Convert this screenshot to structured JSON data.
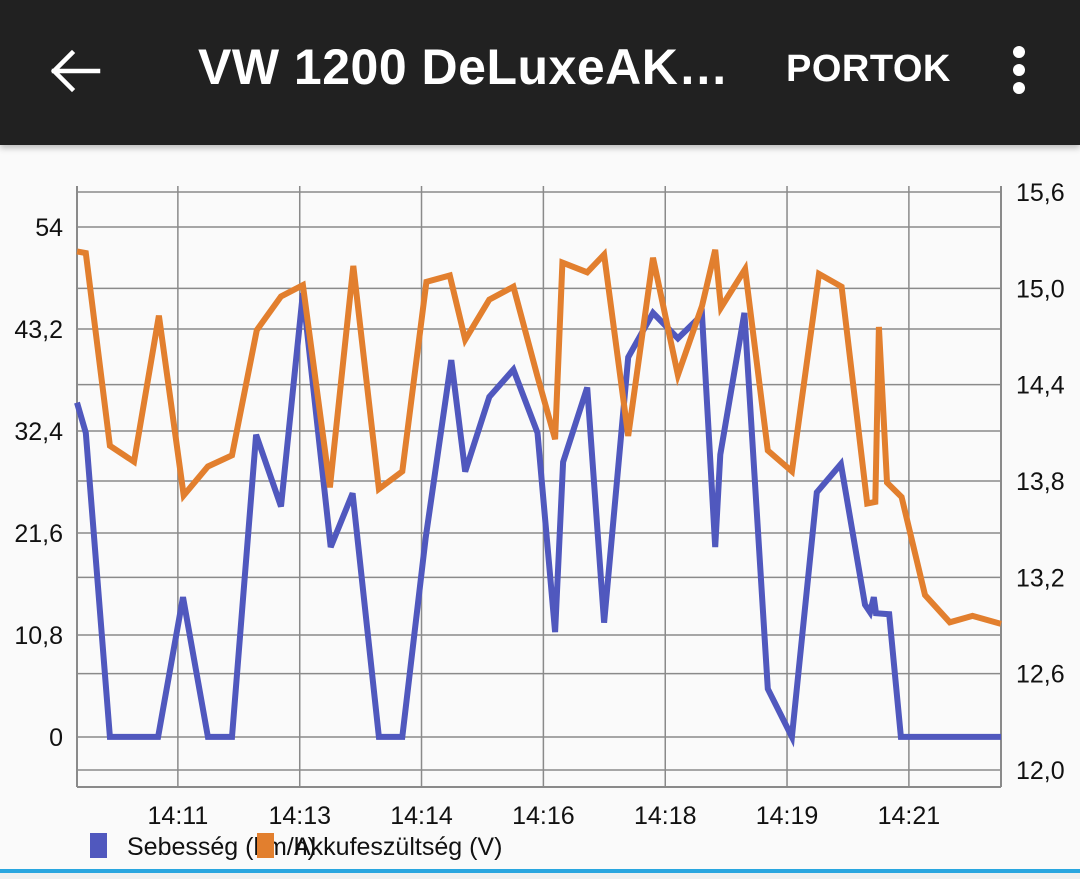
{
  "appbar": {
    "title": "VW 1200 DeLuxeAK…",
    "action_label": "PORTOK",
    "back_icon": "arrow-left-icon",
    "menu_icon": "more-vert-icon"
  },
  "chart_data": {
    "type": "line",
    "title": "",
    "xlabel": "",
    "x_unit": "minutes after 14:00",
    "xlim": [
      9.62,
      22.26
    ],
    "x_ticks": [
      11,
      12.667,
      14.333,
      16,
      17.667,
      19.333,
      21
    ],
    "x_tick_labels": [
      "14:11",
      "14:13",
      "14:14",
      "14:16",
      "14:18",
      "14:19",
      "14:21"
    ],
    "y_left": {
      "label": "Sebesség (km/h)",
      "lim": [
        -5.3,
        57.7
      ],
      "ticks": [
        0,
        10.8,
        21.6,
        32.4,
        43.2,
        54
      ],
      "tick_labels": [
        "0",
        "10,8",
        "21,6",
        "32,4",
        "43,2",
        "54"
      ]
    },
    "y_right": {
      "label": "Akkufeszültség (V)",
      "lim": [
        11.894,
        15.6
      ],
      "ticks": [
        12.0,
        12.6,
        13.2,
        13.8,
        14.4,
        15.0,
        15.6
      ],
      "tick_labels": [
        "12,0",
        "12,6",
        "13,2",
        "13,8",
        "14,4",
        "15,0",
        "15,6"
      ]
    },
    "grid": true,
    "legend_position": "bottom-left",
    "series": [
      {
        "name": "Sebesség (km/h)",
        "axis": "left",
        "color": "#5058be",
        "x": [
          9.62,
          9.74,
          10.07,
          10.73,
          11.07,
          11.41,
          11.74,
          12.07,
          12.41,
          12.71,
          13.09,
          13.39,
          13.75,
          14.07,
          14.39,
          14.74,
          14.93,
          15.26,
          15.59,
          15.92,
          16.16,
          16.27,
          16.6,
          16.83,
          17.16,
          17.5,
          17.84,
          18.17,
          18.35,
          18.42,
          18.75,
          19.07,
          19.4,
          19.74,
          20.07,
          20.4,
          20.47,
          20.52,
          20.55,
          20.73,
          20.89,
          22.26
        ],
        "y": [
          35.4,
          32.2,
          0,
          0,
          14.8,
          0,
          0,
          32.0,
          24.4,
          47.0,
          20.1,
          25.8,
          0,
          0,
          21.1,
          39.9,
          28.1,
          36.0,
          38.9,
          32.2,
          11.1,
          29.1,
          37.0,
          12.1,
          40.2,
          44.9,
          42.2,
          44.7,
          20.1,
          29.9,
          44.9,
          5.1,
          0,
          25.9,
          28.9,
          14.0,
          13.2,
          14.8,
          13.1,
          13.0,
          0,
          0
        ]
      },
      {
        "name": "Akkufeszültség (V)",
        "axis": "right",
        "color": "#e27f2e",
        "x": [
          9.62,
          9.74,
          10.07,
          10.4,
          10.74,
          11.08,
          11.41,
          11.74,
          12.08,
          12.41,
          12.71,
          13.08,
          13.4,
          13.75,
          14.07,
          14.4,
          14.72,
          14.93,
          15.26,
          15.59,
          15.92,
          16.16,
          16.26,
          16.6,
          16.83,
          17.16,
          17.5,
          17.84,
          18.17,
          18.35,
          18.43,
          18.76,
          19.07,
          19.4,
          19.77,
          20.08,
          20.43,
          20.54,
          20.59,
          20.7,
          20.9,
          21.22,
          21.56,
          21.87,
          22.26
        ],
        "y": [
          15.23,
          15.22,
          14.02,
          13.92,
          14.83,
          13.71,
          13.89,
          13.96,
          14.74,
          14.95,
          15.02,
          13.76,
          15.14,
          13.75,
          13.86,
          15.04,
          15.08,
          14.68,
          14.93,
          15.01,
          14.45,
          14.06,
          15.16,
          15.1,
          15.21,
          14.08,
          15.19,
          14.46,
          14.89,
          15.24,
          14.88,
          15.12,
          13.99,
          13.86,
          15.09,
          15.01,
          13.66,
          13.67,
          14.76,
          13.79,
          13.7,
          13.09,
          12.92,
          12.96,
          12.91
        ]
      }
    ]
  }
}
